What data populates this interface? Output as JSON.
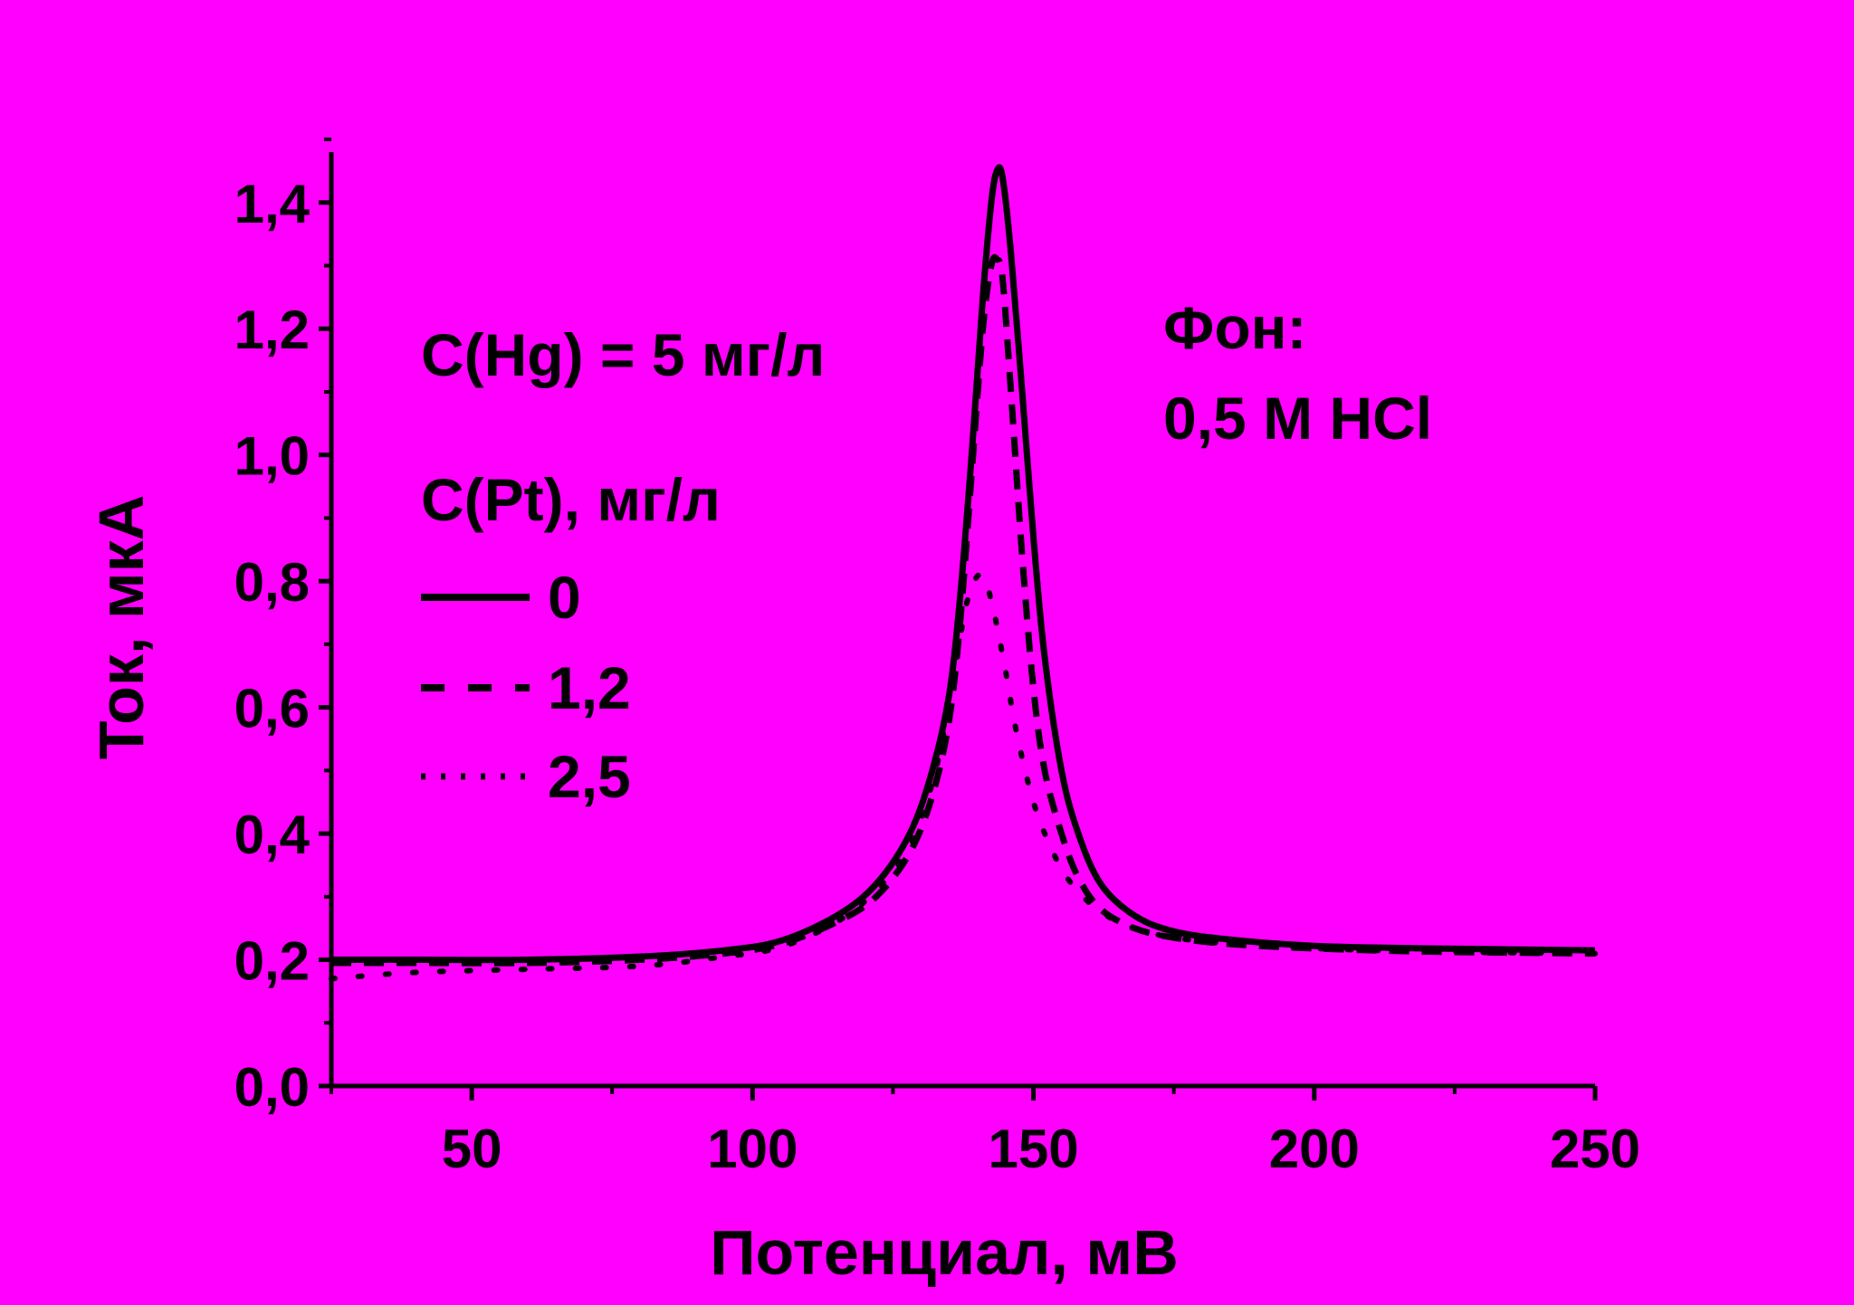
{
  "colors": {
    "background": "#ff00ff",
    "ink": "#000000"
  },
  "chart_data": {
    "type": "line",
    "xlabel": "Потенциал, мВ",
    "ylabel": "Ток, мкА",
    "xlim": [
      25,
      250
    ],
    "ylim": [
      0,
      1.5
    ],
    "x_ticks": [
      50,
      100,
      150,
      200,
      250
    ],
    "x_tick_labels": [
      "50",
      "100",
      "150",
      "200",
      "250"
    ],
    "y_ticks": [
      0,
      0.2,
      0.4,
      0.6,
      0.8,
      1.0,
      1.2,
      1.4
    ],
    "y_tick_labels": [
      "0,0",
      "0,2",
      "0,4",
      "0,6",
      "0,8",
      "1,0",
      "1,2",
      "1,4"
    ],
    "grid": false,
    "annotations": {
      "hg": "C(Hg) = 5 мг/л",
      "background_label": "Фон:",
      "background_value": "0,5 M HCl"
    },
    "legend": {
      "title": "C(Pt), мг/л",
      "placement": "left",
      "entries": [
        "0",
        "1,2",
        "2,5"
      ]
    },
    "series": [
      {
        "name": "0",
        "style": "solid",
        "x": [
          25,
          40,
          60,
          80,
          95,
          105,
          115,
          122,
          128,
          132,
          135,
          137,
          139,
          141,
          142.5,
          143.5,
          144.5,
          146,
          148,
          150,
          152,
          155,
          158,
          162,
          168,
          175,
          185,
          200,
          220,
          250
        ],
        "y": [
          0.2,
          0.2,
          0.2,
          0.205,
          0.215,
          0.23,
          0.27,
          0.32,
          0.4,
          0.5,
          0.62,
          0.78,
          1.0,
          1.25,
          1.4,
          1.45,
          1.44,
          1.32,
          1.1,
          0.87,
          0.68,
          0.5,
          0.4,
          0.32,
          0.27,
          0.245,
          0.232,
          0.222,
          0.218,
          0.215
        ]
      },
      {
        "name": "1,2",
        "style": "dashed",
        "x": [
          25,
          40,
          60,
          80,
          95,
          105,
          115,
          122,
          128,
          132,
          135,
          137,
          139,
          141,
          142.5,
          143.5,
          144.5,
          146,
          148,
          150,
          152,
          155,
          158,
          162,
          168,
          175,
          185,
          200,
          220,
          250
        ],
        "y": [
          0.195,
          0.195,
          0.195,
          0.2,
          0.21,
          0.225,
          0.26,
          0.3,
          0.37,
          0.46,
          0.58,
          0.74,
          0.97,
          1.2,
          1.3,
          1.31,
          1.28,
          1.1,
          0.84,
          0.63,
          0.5,
          0.4,
          0.33,
          0.28,
          0.25,
          0.235,
          0.225,
          0.218,
          0.213,
          0.21
        ]
      },
      {
        "name": "2,5",
        "style": "dotted",
        "x": [
          25,
          40,
          60,
          80,
          95,
          105,
          115,
          122,
          128,
          132,
          134,
          136,
          138,
          139.5,
          140.5,
          141.5,
          143,
          145,
          147,
          150,
          153,
          156,
          160,
          165,
          170,
          175,
          185,
          200,
          220,
          250
        ],
        "y": [
          0.17,
          0.18,
          0.185,
          0.19,
          0.205,
          0.22,
          0.26,
          0.31,
          0.38,
          0.48,
          0.56,
          0.66,
          0.76,
          0.8,
          0.81,
          0.8,
          0.75,
          0.66,
          0.56,
          0.45,
          0.38,
          0.33,
          0.29,
          0.26,
          0.245,
          0.235,
          0.225,
          0.218,
          0.213,
          0.21
        ]
      }
    ]
  }
}
